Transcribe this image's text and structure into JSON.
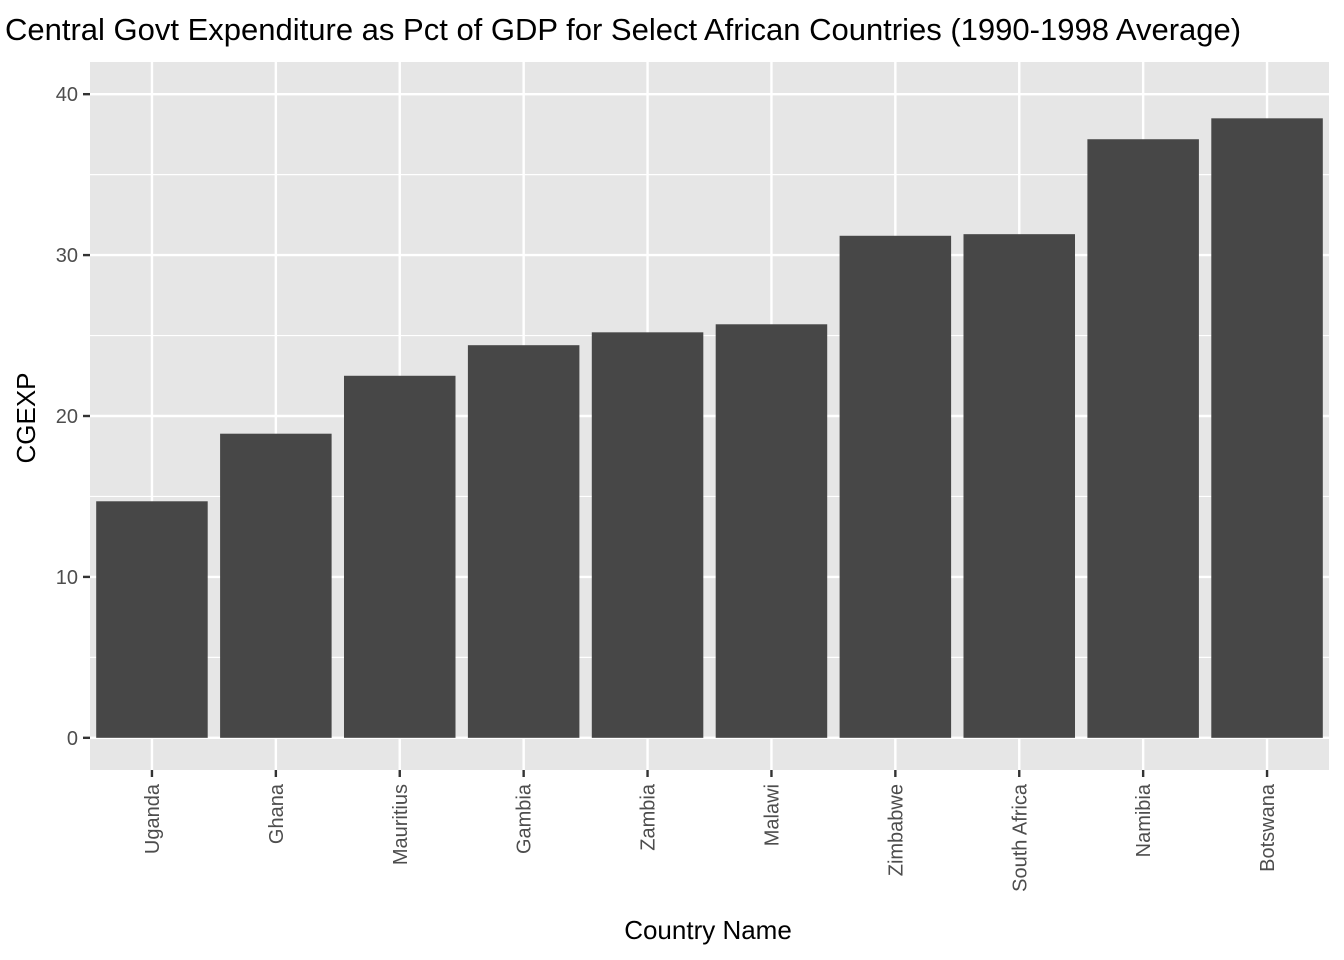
{
  "chart_data": {
    "type": "bar",
    "title": "Central Govt Expenditure as Pct of GDP for Select African Countries (1990-1998 Average)",
    "xlabel": "Country Name",
    "ylabel": "CGEXP",
    "categories": [
      "Uganda",
      "Ghana",
      "Mauritius",
      "Gambia",
      "Zambia",
      "Malawi",
      "Zimbabwe",
      "South Africa",
      "Namibia",
      "Botswana"
    ],
    "values": [
      14.7,
      18.9,
      22.5,
      24.4,
      25.2,
      25.7,
      31.2,
      31.3,
      37.2,
      38.5
    ],
    "yticks": [
      0,
      10,
      20,
      30,
      40
    ],
    "ylim": [
      -2,
      42
    ],
    "grid": true,
    "legend": "none",
    "colors": {
      "bar": "#474747",
      "panel": "#e6e6e6",
      "grid": "#ffffff",
      "tick": "#333333"
    }
  }
}
